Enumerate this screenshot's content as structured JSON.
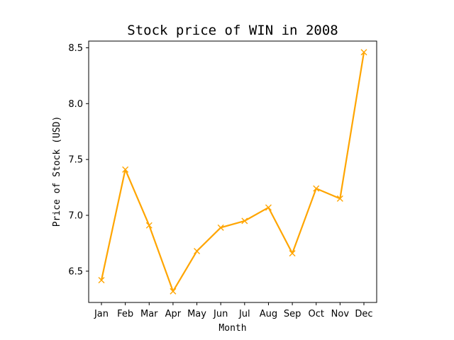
{
  "chart_data": {
    "type": "line",
    "title": "Stock price of WIN in 2008",
    "xlabel": "Month",
    "ylabel": "Price of Stock (USD)",
    "categories": [
      "Jan",
      "Feb",
      "Mar",
      "Apr",
      "May",
      "Jun",
      "Jul",
      "Aug",
      "Sep",
      "Oct",
      "Nov",
      "Dec"
    ],
    "series": [
      {
        "values": [
          6.42,
          7.41,
          6.91,
          6.32,
          6.68,
          6.89,
          6.95,
          7.07,
          6.66,
          7.24,
          7.15,
          8.46
        ],
        "color": "#ffa500",
        "marker": "x"
      }
    ],
    "yticks": [
      "6.5",
      "7.0",
      "7.5",
      "8.0",
      "8.5"
    ],
    "ylim": [
      6.22,
      8.56
    ],
    "grid": false,
    "legend": false
  }
}
